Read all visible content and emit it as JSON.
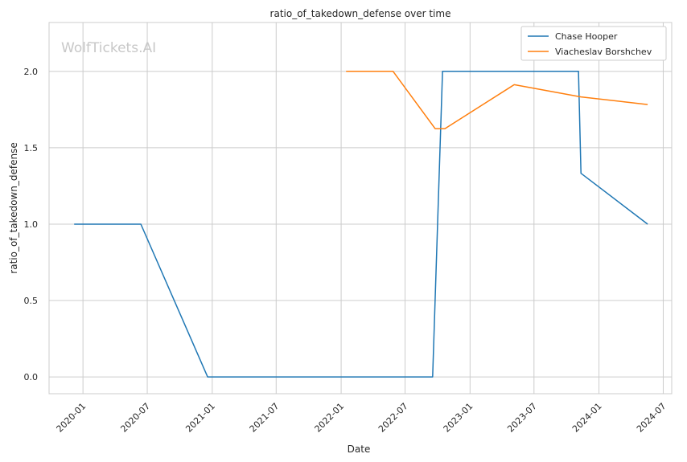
{
  "chart_data": {
    "type": "line",
    "title": "ratio_of_takedown_defense over time",
    "xlabel": "Date",
    "ylabel": "ratio_of_takedown_defense",
    "watermark": "WolfTickets.AI",
    "x_ticks": [
      "2020-01",
      "2020-07",
      "2021-01",
      "2021-07",
      "2022-01",
      "2022-07",
      "2023-01",
      "2023-07",
      "2024-01",
      "2024-07"
    ],
    "y_ticks": [
      "0.0",
      "0.5",
      "1.0",
      "1.5",
      "2.0"
    ],
    "ylim": [
      -0.11,
      2.32
    ],
    "xlim": [
      "2019-09-27",
      "2024-07-25"
    ],
    "grid": true,
    "legend_position": "top-right",
    "series": [
      {
        "name": "Chase Hooper",
        "color": "#1f77b4",
        "points": [
          {
            "x": "2019-12-07",
            "y": 1.0
          },
          {
            "x": "2020-06-13",
            "y": 1.0
          },
          {
            "x": "2020-12-19",
            "y": 0.0
          },
          {
            "x": "2022-09-17",
            "y": 0.0
          },
          {
            "x": "2022-10-15",
            "y": 2.0
          },
          {
            "x": "2023-11-04",
            "y": 2.0
          },
          {
            "x": "2023-11-11",
            "y": 1.333
          },
          {
            "x": "2024-05-18",
            "y": 1.0
          }
        ]
      },
      {
        "name": "Viacheslav Borshchev",
        "color": "#ff7f0e",
        "points": [
          {
            "x": "2022-01-15",
            "y": 2.0
          },
          {
            "x": "2022-05-28",
            "y": 2.0
          },
          {
            "x": "2022-09-24",
            "y": 1.625
          },
          {
            "x": "2022-10-22",
            "y": 1.625
          },
          {
            "x": "2023-05-06",
            "y": 1.913
          },
          {
            "x": "2023-11-11",
            "y": 1.833
          },
          {
            "x": "2024-05-18",
            "y": 1.783
          }
        ]
      }
    ]
  }
}
